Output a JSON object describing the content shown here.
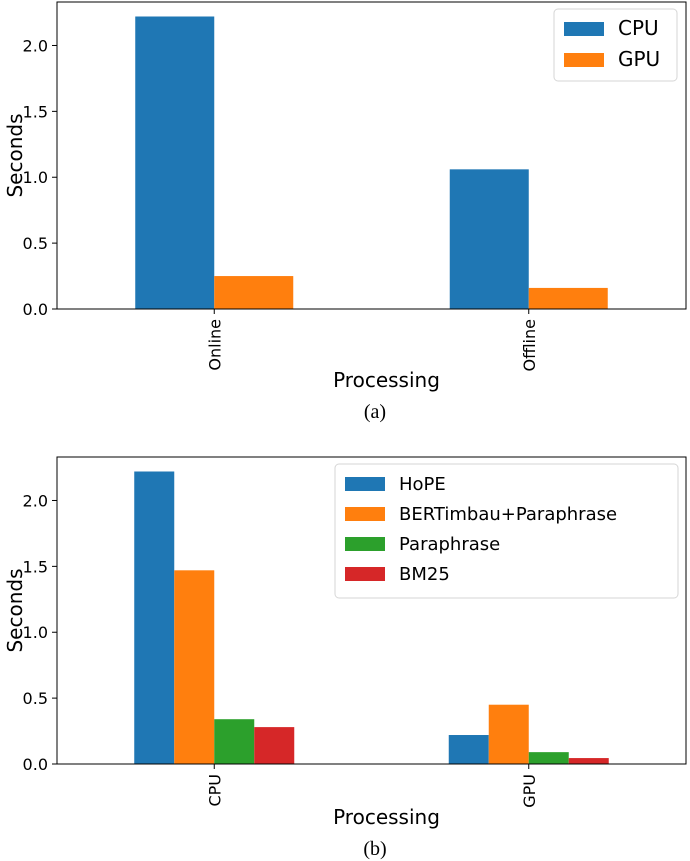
{
  "chart_data": [
    {
      "type": "bar",
      "caption": "(a)",
      "xlabel": "Processing",
      "ylabel": "Seconds",
      "categories": [
        "Online",
        "Offline"
      ],
      "series": [
        {
          "name": "CPU",
          "color": "#1f77b4",
          "values": [
            2.22,
            1.06
          ]
        },
        {
          "name": "GPU",
          "color": "#ff7f0e",
          "values": [
            0.25,
            0.16
          ]
        }
      ],
      "ylim": [
        0,
        2.33
      ],
      "yticks": [
        0.0,
        0.5,
        1.0,
        1.5,
        2.0
      ],
      "ytick_labels": [
        "0.0",
        "0.5",
        "1.0",
        "1.5",
        "2.0"
      ],
      "xtick_rotation": "vertical",
      "legend_position": "top-right",
      "grid": false
    },
    {
      "type": "bar",
      "caption": "(b)",
      "xlabel": "Processing",
      "ylabel": "Seconds",
      "categories": [
        "CPU",
        "GPU"
      ],
      "series": [
        {
          "name": "HoPE",
          "color": "#1f77b4",
          "values": [
            2.22,
            0.22
          ]
        },
        {
          "name": "BERTimbau+Paraphrase",
          "color": "#ff7f0e",
          "values": [
            1.47,
            0.45
          ]
        },
        {
          "name": "Paraphrase",
          "color": "#2ca02c",
          "values": [
            0.34,
            0.09
          ]
        },
        {
          "name": "BM25",
          "color": "#d62728",
          "values": [
            0.28,
            0.045
          ]
        }
      ],
      "ylim": [
        0,
        2.33
      ],
      "yticks": [
        0.0,
        0.5,
        1.0,
        1.5,
        2.0
      ],
      "ytick_labels": [
        "0.0",
        "0.5",
        "1.0",
        "1.5",
        "2.0"
      ],
      "xtick_rotation": "vertical",
      "legend_position": "top-right",
      "grid": false
    }
  ]
}
